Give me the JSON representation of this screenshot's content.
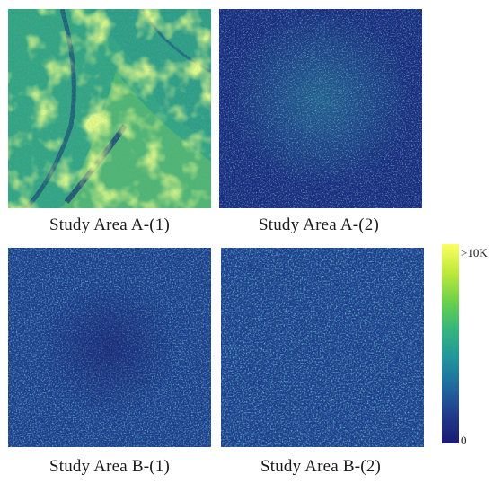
{
  "panels": [
    {
      "id": "a1",
      "caption": "Study Area A-(1)"
    },
    {
      "id": "a2",
      "caption": "Study Area A-(2)"
    },
    {
      "id": "b1",
      "caption": "Study Area B-(1)"
    },
    {
      "id": "b2",
      "caption": "Study Area B-(2)"
    }
  ],
  "colorbar": {
    "max_label": ">10K",
    "min_label": "0",
    "colors": [
      "#1a1a73",
      "#213a8c",
      "#1f6aa0",
      "#22959c",
      "#35b57e",
      "#6ad14a",
      "#bfe93a",
      "#fcff62"
    ]
  }
}
